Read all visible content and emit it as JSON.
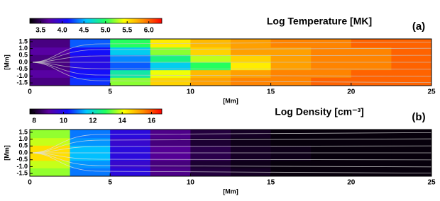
{
  "chart_data": [
    {
      "type": "heatmap",
      "title": "Log Temperature [MK]",
      "panel_label": "(a)",
      "xlabel": "[Mm]",
      "ylabel": "[Mm]",
      "xlim": [
        0,
        25
      ],
      "xticks": [
        0,
        5,
        10,
        15,
        20,
        25
      ],
      "ylim": [
        -1.7,
        1.7
      ],
      "yticks": [
        1.5,
        {
          "value": 1,
          "label": "1.0"
        },
        0.5,
        {
          "value": 0,
          "label": "0.0"
        },
        -0.5,
        {
          "value": -1,
          "label": "-1.0"
        },
        -1.5
      ],
      "clim": [
        3.25,
        6.3
      ],
      "cticks": [
        3.5,
        {
          "value": 4,
          "label": "4.0"
        },
        4.5,
        {
          "value": 5,
          "label": "5.0"
        },
        5.5,
        {
          "value": 6,
          "label": "6.0"
        }
      ],
      "colormap": [
        "#000000",
        "#5a00a0",
        "#1010ff",
        "#00c8ff",
        "#20ff60",
        "#ffff00",
        "#ff9000",
        "#ff0000"
      ],
      "xbins": [
        0,
        2.5,
        5,
        7.5,
        10,
        12.5,
        15,
        17.5,
        20,
        22.5,
        25
      ],
      "ybins": [
        -1.7,
        -1.1,
        -0.55,
        0,
        0.55,
        1.1,
        1.7
      ],
      "z": [
        [
          3.6,
          4.2,
          5.2,
          5.6,
          5.8,
          5.9,
          5.9,
          6.0,
          6.0,
          6.0
        ],
        [
          3.7,
          4.1,
          4.8,
          5.4,
          5.7,
          5.8,
          5.9,
          5.9,
          6.0,
          6.0
        ],
        [
          3.6,
          4.0,
          4.3,
          4.6,
          5.0,
          5.5,
          5.8,
          5.9,
          5.9,
          6.0
        ],
        [
          3.6,
          4.0,
          4.4,
          4.9,
          5.3,
          5.6,
          5.8,
          5.9,
          5.9,
          6.0
        ],
        [
          3.7,
          4.1,
          4.6,
          5.2,
          5.6,
          5.8,
          5.8,
          5.9,
          5.9,
          6.0
        ],
        [
          3.6,
          4.3,
          5.0,
          5.5,
          5.7,
          5.8,
          5.9,
          5.9,
          6.0,
          6.0
        ]
      ]
    },
    {
      "type": "heatmap",
      "title": "Log Density [cm⁻³]",
      "panel_label": "(b)",
      "xlabel": "[Mm]",
      "ylabel": "[Mm]",
      "xlim": [
        0,
        25
      ],
      "xticks": [
        0,
        5,
        10,
        15,
        20,
        25
      ],
      "ylim": [
        -1.7,
        1.7
      ],
      "yticks": [
        1.5,
        {
          "value": 1,
          "label": "1.0"
        },
        0.5,
        {
          "value": 0,
          "label": "0.0"
        },
        -0.5,
        {
          "value": -1,
          "label": "-1.0"
        },
        -1.5
      ],
      "clim": [
        7.7,
        16.7
      ],
      "cticks": [
        8,
        10,
        12,
        14,
        16
      ],
      "colormap": [
        "#000000",
        "#5a00a0",
        "#1010ff",
        "#00c8ff",
        "#20ff60",
        "#ffff00",
        "#ff9000",
        "#ff0000"
      ],
      "xbins": [
        0,
        2.5,
        5,
        7.5,
        10,
        12.5,
        15,
        17.5,
        20,
        22.5,
        25
      ],
      "ybins": [
        -1.7,
        -1.1,
        -0.55,
        0,
        0.55,
        1.1,
        1.7
      ],
      "z": [
        [
          13.5,
          11,
          9.8,
          8.8,
          8.2,
          8,
          7.8,
          7.8,
          7.8,
          7.8
        ],
        [
          13.8,
          11.2,
          9.6,
          8.7,
          8.1,
          7.9,
          7.8,
          7.8,
          7.8,
          7.8
        ],
        [
          14.5,
          11.5,
          9.8,
          8.9,
          8.3,
          8,
          7.9,
          7.8,
          7.8,
          7.8
        ],
        [
          14.5,
          11.5,
          9.8,
          8.9,
          8.3,
          8,
          7.9,
          7.8,
          7.8,
          7.8
        ],
        [
          13.8,
          11.2,
          9.6,
          8.7,
          8.1,
          7.9,
          7.8,
          7.8,
          7.8,
          7.8
        ],
        [
          13.5,
          11,
          9.8,
          8.8,
          8.2,
          8,
          7.8,
          7.8,
          7.8,
          7.8
        ]
      ]
    }
  ]
}
